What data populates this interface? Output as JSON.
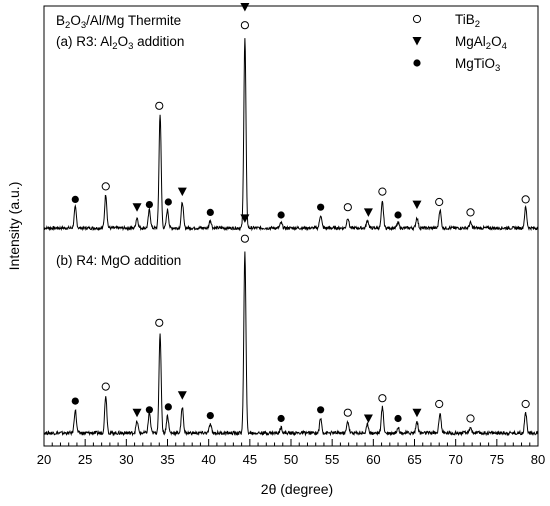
{
  "chart_data": {
    "type": "line",
    "title": "B2O3/Al/Mg Thermite",
    "xlabel": "2θ (degree)",
    "ylabel": "Intensity (a.u.)",
    "xlim": [
      20,
      80
    ],
    "xticks": [
      20,
      25,
      30,
      35,
      40,
      45,
      50,
      55,
      60,
      65,
      70,
      75,
      80
    ],
    "grid": false,
    "legend_position": "top-right",
    "legend": [
      {
        "symbol": "open-circle",
        "formula": "TiB2",
        "parts": [
          [
            "Ti",
            ""
          ],
          [
            "B",
            ""
          ],
          [
            "2",
            "sub"
          ]
        ]
      },
      {
        "symbol": "down-triangle",
        "formula": "MgAl2O4",
        "parts": [
          [
            "MgAl",
            ""
          ],
          [
            "2",
            "sub"
          ],
          [
            "O",
            ""
          ],
          [
            "4",
            "sub"
          ]
        ]
      },
      {
        "symbol": "filled-circle",
        "formula": "MgTiO3",
        "parts": [
          [
            "MgTiO",
            ""
          ],
          [
            "3",
            "sub"
          ]
        ]
      }
    ],
    "series": [
      {
        "name": "(a) R3: Al2O3 addition",
        "label_parts": [
          [
            "(a) R3: Al",
            ""
          ],
          [
            "2",
            "sub"
          ],
          [
            "O",
            ""
          ],
          [
            "3",
            "sub"
          ],
          [
            " addition",
            ""
          ]
        ],
        "baseline": 0.0,
        "peaks": [
          {
            "x": 23.8,
            "h": 0.08
          },
          {
            "x": 27.5,
            "h": 0.13
          },
          {
            "x": 31.3,
            "h": 0.04
          },
          {
            "x": 32.8,
            "h": 0.07
          },
          {
            "x": 34.1,
            "h": 0.44
          },
          {
            "x": 35.0,
            "h": 0.07
          },
          {
            "x": 36.8,
            "h": 0.1
          },
          {
            "x": 40.2,
            "h": 0.03
          },
          {
            "x": 44.4,
            "h": 0.73
          },
          {
            "x": 48.8,
            "h": 0.02
          },
          {
            "x": 53.6,
            "h": 0.05
          },
          {
            "x": 56.9,
            "h": 0.04
          },
          {
            "x": 59.3,
            "h": 0.03
          },
          {
            "x": 61.1,
            "h": 0.1
          },
          {
            "x": 63.0,
            "h": 0.02
          },
          {
            "x": 65.3,
            "h": 0.04
          },
          {
            "x": 68.1,
            "h": 0.07
          },
          {
            "x": 71.8,
            "h": 0.02
          },
          {
            "x": 78.5,
            "h": 0.08
          }
        ]
      },
      {
        "name": "(b) R4: MgO addition",
        "label_parts": [
          [
            "(b) R4: MgO addition",
            ""
          ]
        ],
        "baseline": 0.0,
        "peaks": [
          {
            "x": 23.8,
            "h": 0.08
          },
          {
            "x": 27.5,
            "h": 0.13
          },
          {
            "x": 31.3,
            "h": 0.04
          },
          {
            "x": 32.8,
            "h": 0.07
          },
          {
            "x": 34.1,
            "h": 0.34
          },
          {
            "x": 35.0,
            "h": 0.06
          },
          {
            "x": 36.8,
            "h": 0.09
          },
          {
            "x": 40.2,
            "h": 0.03
          },
          {
            "x": 44.4,
            "h": 0.62
          },
          {
            "x": 48.8,
            "h": 0.02
          },
          {
            "x": 53.6,
            "h": 0.05
          },
          {
            "x": 56.9,
            "h": 0.04
          },
          {
            "x": 59.3,
            "h": 0.03
          },
          {
            "x": 61.1,
            "h": 0.09
          },
          {
            "x": 63.0,
            "h": 0.02
          },
          {
            "x": 65.3,
            "h": 0.04
          },
          {
            "x": 68.1,
            "h": 0.07
          },
          {
            "x": 71.8,
            "h": 0.02
          },
          {
            "x": 78.5,
            "h": 0.07
          }
        ]
      }
    ],
    "markers": [
      {
        "series": 0,
        "phase": "open-circle",
        "x": [
          27.5,
          34.0,
          44.4,
          56.9,
          61.1,
          68.0,
          71.8,
          78.5
        ],
        "y": [
          0.16,
          0.47,
          0.78,
          0.08,
          0.14,
          0.1,
          0.06,
          0.11
        ]
      },
      {
        "series": 0,
        "phase": "down-triangle",
        "x": [
          31.3,
          36.8,
          44.4,
          59.4,
          65.3
        ],
        "y": [
          0.08,
          0.14,
          0.85,
          0.06,
          0.09
        ]
      },
      {
        "series": 0,
        "phase": "filled-circle",
        "x": [
          23.8,
          32.8,
          35.1,
          40.2,
          48.8,
          53.6,
          63.0
        ],
        "y": [
          0.11,
          0.09,
          0.1,
          0.06,
          0.05,
          0.08,
          0.05
        ]
      },
      {
        "series": 1,
        "phase": "open-circle",
        "x": [
          27.5,
          34.0,
          44.4,
          56.9,
          61.1,
          68.0,
          71.8,
          78.5
        ],
        "y": [
          0.16,
          0.38,
          0.67,
          0.07,
          0.12,
          0.1,
          0.05,
          0.1
        ]
      },
      {
        "series": 1,
        "phase": "down-triangle",
        "x": [
          31.3,
          36.8,
          44.4,
          59.4,
          65.3
        ],
        "y": [
          0.07,
          0.13,
          0.74,
          0.05,
          0.07
        ]
      },
      {
        "series": 1,
        "phase": "filled-circle",
        "x": [
          23.8,
          32.8,
          35.1,
          40.2,
          48.8,
          53.6,
          63.0
        ],
        "y": [
          0.11,
          0.08,
          0.09,
          0.06,
          0.05,
          0.08,
          0.05
        ]
      }
    ]
  }
}
